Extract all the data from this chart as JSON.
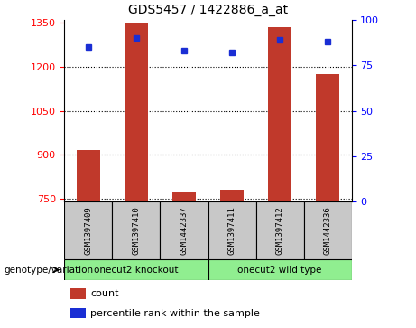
{
  "title": "GDS5457 / 1422886_a_at",
  "samples": [
    "GSM1397409",
    "GSM1397410",
    "GSM1442337",
    "GSM1397411",
    "GSM1397412",
    "GSM1442336"
  ],
  "counts": [
    915,
    1347,
    770,
    780,
    1335,
    1175
  ],
  "percentile_ranks": [
    85,
    90,
    83,
    82,
    89,
    88
  ],
  "ylim_left": [
    740,
    1360
  ],
  "yticks_left": [
    750,
    900,
    1050,
    1200,
    1350
  ],
  "ylim_right": [
    0,
    100
  ],
  "yticks_right": [
    0,
    25,
    50,
    75,
    100
  ],
  "bar_color": "#c0392b",
  "dot_color": "#1a2ed4",
  "bg_color": "#c8c8c8",
  "group1_label": "onecut2 knockout",
  "group2_label": "onecut2 wild type",
  "group_color": "#90ee90",
  "genotype_label": "genotype/variation",
  "legend_count": "count",
  "legend_pct": "percentile rank within the sample",
  "bar_width": 0.5
}
